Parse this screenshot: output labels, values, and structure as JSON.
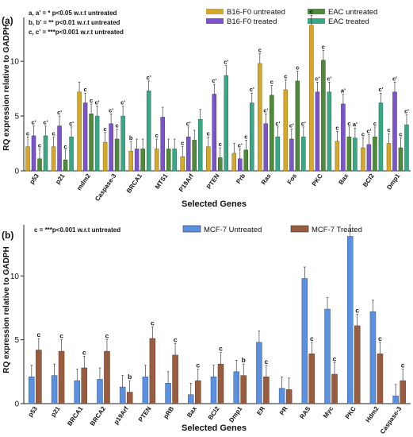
{
  "chart_data": [
    {
      "type": "bar",
      "panel_label": "(a)",
      "ylabel": "RQ expression relative to GADPH",
      "xlabel": "Selected Genes",
      "ylim": [
        0,
        14
      ],
      "yticks": [
        0,
        5,
        10
      ],
      "categories": [
        "p53",
        "p21",
        "mdm2",
        "Caspase-3",
        "BRCA1",
        "MTS1",
        "P19Arf",
        "PTEN",
        "Prb",
        "Ras",
        "Fos",
        "PKC",
        "Bax",
        "BCl2",
        "Dmp1"
      ],
      "series": [
        {
          "name": "B16-F0 untreated",
          "color": "#d6a82a",
          "values": [
            2.2,
            2.2,
            7.2,
            2.6,
            1.8,
            2.0,
            1.3,
            2.2,
            1.6,
            9.8,
            7.4,
            13.3,
            2.7,
            2.1,
            2.5
          ]
        },
        {
          "name": "B16-F0 treated",
          "color": "#7a55c9",
          "values": [
            3.2,
            4.1,
            6.2,
            4.3,
            2.0,
            4.9,
            3.1,
            7.0,
            1.1,
            4.3,
            2.9,
            7.2,
            6.1,
            2.4,
            7.2
          ]
        },
        {
          "name": "EAC untreated",
          "color": "#4f8a3a",
          "values": [
            1.1,
            1.0,
            5.2,
            2.9,
            2.0,
            2.0,
            2.8,
            1.2,
            1.9,
            6.9,
            8.2,
            10.1,
            3.1,
            3.1,
            2.1
          ]
        },
        {
          "name": "EAC treated",
          "color": "#3aa886",
          "values": [
            3.2,
            3.1,
            5.0,
            5.0,
            7.3,
            2.0,
            4.7,
            8.7,
            6.2,
            3.1,
            3.1,
            7.2,
            3.0,
            6.2,
            4.2
          ]
        }
      ],
      "annotations": [
        [
          "c",
          "c'",
          "c",
          "c'"
        ],
        [
          "c",
          "c'",
          "c",
          "c'"
        ],
        [
          "",
          "c",
          "c",
          "c'"
        ],
        [
          "c",
          "c'",
          "c",
          "c'"
        ],
        [
          "b",
          "",
          "",
          "c'"
        ],
        [
          "c",
          "",
          "",
          ""
        ],
        [
          "c",
          "c'",
          "",
          ""
        ],
        [
          "c",
          "c'",
          "c",
          "c'"
        ],
        [
          "",
          "c'",
          "c",
          "c'"
        ],
        [
          "c",
          "c'",
          "c",
          "c'"
        ],
        [
          "c",
          "c'",
          "c",
          "c'"
        ],
        [
          "c",
          "c'",
          "c",
          "c'"
        ],
        [
          "c",
          "a'",
          "c",
          "a'"
        ],
        [
          "c",
          "c'",
          "c",
          "c'"
        ],
        [
          "c",
          "c'",
          "c",
          "c'"
        ]
      ],
      "notes": [
        "a, a' = * p<0.05 w.r.t untreated",
        "b, b' = ** p<0.01 w.r.t untreated",
        "c, c' = ***p<0.001 w.r.t untreated"
      ]
    },
    {
      "type": "bar",
      "panel_label": "(b)",
      "ylabel": "RQ expression relative to GADPH",
      "xlabel": "Selected Genes",
      "ylim": [
        0,
        14
      ],
      "yticks": [
        0,
        5,
        10
      ],
      "categories": [
        "p53",
        "p21",
        "BRCA1",
        "BRCA2",
        "p19Arf",
        "PTEN",
        "pRB",
        "Bax",
        "BCl2",
        "Dmp1",
        "ER",
        "PR",
        "RAS",
        "Myc",
        "PKC",
        "Hdm2",
        "Caspase-3"
      ],
      "series": [
        {
          "name": "MCF-7 Untreated",
          "color": "#5b8fe0",
          "values": [
            2.1,
            2.2,
            1.8,
            1.9,
            1.3,
            2.1,
            1.6,
            0.7,
            2.1,
            2.5,
            4.8,
            1.2,
            9.8,
            7.4,
            13.1,
            7.2,
            0.6
          ]
        },
        {
          "name": "MCF-7 Treated",
          "color": "#9a5c3f",
          "values": [
            4.2,
            4.1,
            2.8,
            4.1,
            0.9,
            5.1,
            3.8,
            1.8,
            3.1,
            2.2,
            2.1,
            1.1,
            3.9,
            2.3,
            6.1,
            3.9,
            1.8
          ]
        }
      ],
      "annotations": [
        "c",
        "c",
        "c",
        "c",
        "b",
        "c",
        "c",
        "c",
        "c",
        "b",
        "c",
        "",
        "c",
        "c",
        "c",
        "c",
        "c"
      ],
      "notes": [
        "c = ***p<0.001 w.r.t untreated"
      ]
    }
  ]
}
